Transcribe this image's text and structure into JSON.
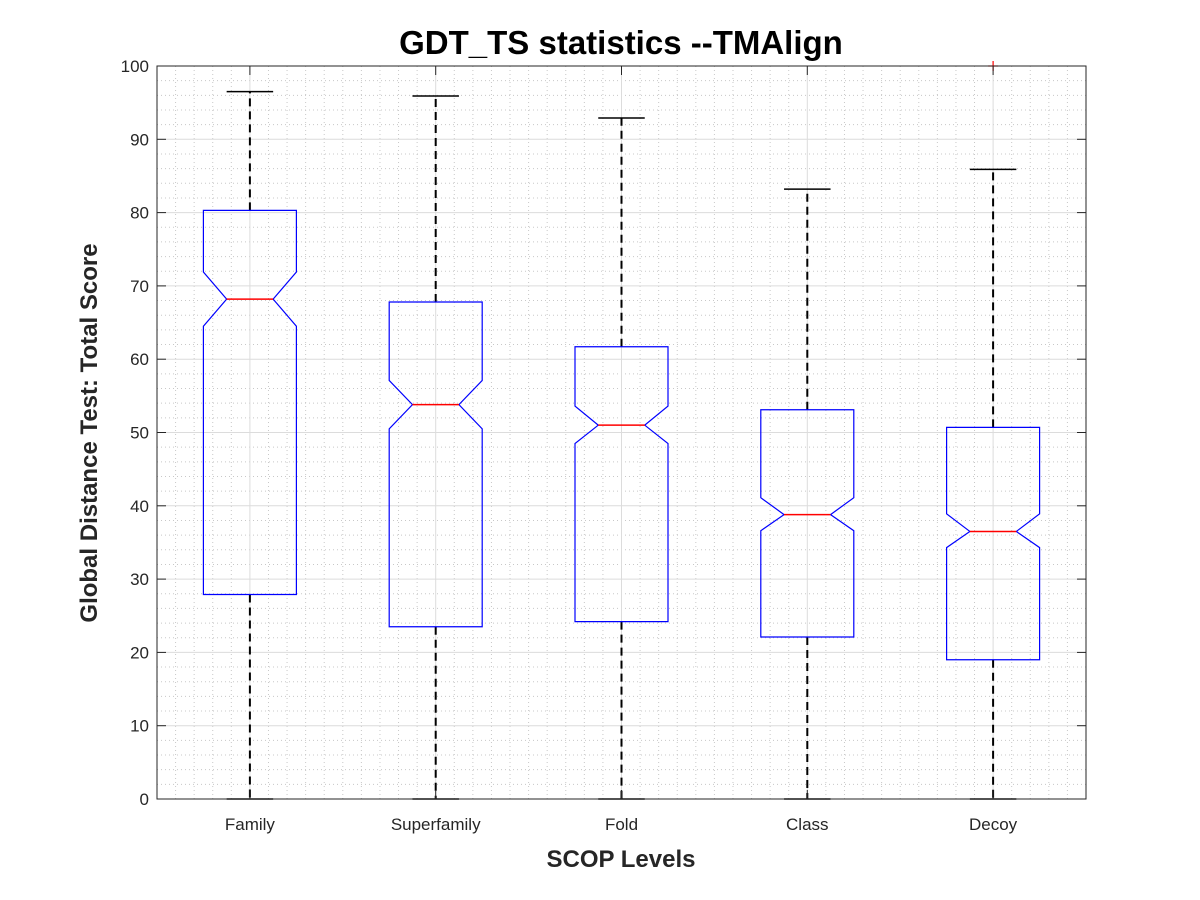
{
  "chart_data": {
    "type": "boxplot",
    "title": "GDT_TS statistics --TMAlign",
    "xlabel": "SCOP Levels",
    "ylabel": "Global Distance Test: Total Score",
    "categories": [
      "Family",
      "Superfamily",
      "Fold",
      "Class",
      "Decoy"
    ],
    "ylim": [
      0,
      100
    ],
    "yticks": [
      0,
      10,
      20,
      30,
      40,
      50,
      60,
      70,
      80,
      90,
      100
    ],
    "grid": "major and minor",
    "notched": true,
    "boxes": [
      {
        "whisker_low": 0,
        "q1": 27.9,
        "median": 68.2,
        "q3": 80.3,
        "whisker_high": 96.5,
        "notch_low": 64.5,
        "notch_high": 71.9,
        "outliers": []
      },
      {
        "whisker_low": 0,
        "q1": 23.5,
        "median": 53.8,
        "q3": 67.8,
        "whisker_high": 95.9,
        "notch_low": 50.5,
        "notch_high": 57.1,
        "outliers": []
      },
      {
        "whisker_low": 0,
        "q1": 24.2,
        "median": 51.0,
        "q3": 61.7,
        "whisker_high": 92.9,
        "notch_low": 48.5,
        "notch_high": 53.6,
        "outliers": []
      },
      {
        "whisker_low": 0,
        "q1": 22.1,
        "median": 38.8,
        "q3": 53.1,
        "whisker_high": 83.2,
        "notch_low": 36.6,
        "notch_high": 41.1,
        "outliers": []
      },
      {
        "whisker_low": 0,
        "q1": 19.0,
        "median": 36.5,
        "q3": 50.7,
        "whisker_high": 85.9,
        "notch_low": 34.3,
        "notch_high": 38.9,
        "outliers": [
          100
        ]
      }
    ],
    "colors": {
      "box": "#0000ff",
      "median": "#ff0000",
      "whisker": "#000000",
      "outlier": "#ff0000"
    }
  }
}
